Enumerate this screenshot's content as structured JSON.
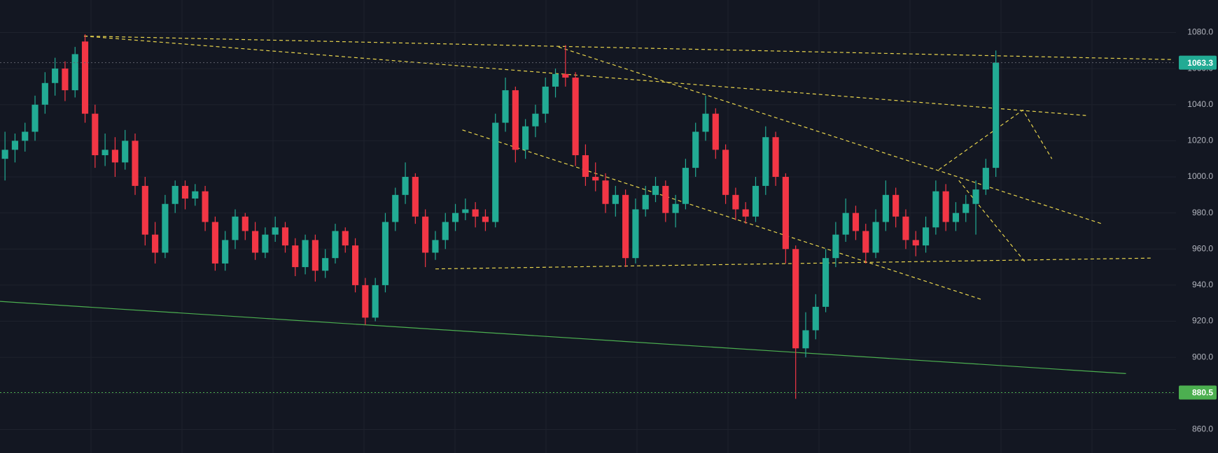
{
  "chart_data": {
    "type": "candlestick",
    "up_color": "#22ab94",
    "down_color": "#f23645",
    "ylim": [
      847,
      1098
    ],
    "xlim": [
      -0.5,
      117
    ],
    "yticks": [
      {
        "value": 860,
        "label": "860.0"
      },
      {
        "value": 880,
        "label": "880.0"
      },
      {
        "value": 900,
        "label": "900.0"
      },
      {
        "value": 920,
        "label": "920.0"
      },
      {
        "value": 940,
        "label": "940.0"
      },
      {
        "value": 960,
        "label": "960.0"
      },
      {
        "value": 980,
        "label": "980.0"
      },
      {
        "value": 1000,
        "label": "1000.0"
      },
      {
        "value": 1020,
        "label": "1020.0"
      },
      {
        "value": 1040,
        "label": "1040.0"
      },
      {
        "value": 1060,
        "label": "1060.0"
      },
      {
        "value": 1080,
        "label": "1080.0"
      }
    ],
    "grid": true,
    "candles": [
      [
        1010,
        1025,
        998,
        1015
      ],
      [
        1015,
        1024,
        1008,
        1020
      ],
      [
        1020,
        1030,
        1014,
        1025
      ],
      [
        1025,
        1045,
        1020,
        1040
      ],
      [
        1040,
        1058,
        1035,
        1052
      ],
      [
        1052,
        1066,
        1045,
        1060
      ],
      [
        1060,
        1064,
        1042,
        1048
      ],
      [
        1048,
        1072,
        1044,
        1068
      ],
      [
        1075,
        1079,
        1030,
        1035
      ],
      [
        1035,
        1040,
        1005,
        1012
      ],
      [
        1012,
        1024,
        1006,
        1015
      ],
      [
        1015,
        1022,
        1000,
        1008
      ],
      [
        1008,
        1026,
        1004,
        1020
      ],
      [
        1020,
        1024,
        990,
        995
      ],
      [
        995,
        1000,
        962,
        968
      ],
      [
        968,
        975,
        952,
        958
      ],
      [
        958,
        990,
        955,
        985
      ],
      [
        985,
        998,
        980,
        995
      ],
      [
        995,
        998,
        982,
        988
      ],
      [
        988,
        996,
        984,
        992
      ],
      [
        992,
        995,
        970,
        975
      ],
      [
        975,
        978,
        948,
        952
      ],
      [
        952,
        970,
        948,
        965
      ],
      [
        965,
        982,
        960,
        978
      ],
      [
        978,
        980,
        965,
        970
      ],
      [
        970,
        975,
        954,
        958
      ],
      [
        958,
        972,
        955,
        968
      ],
      [
        968,
        978,
        964,
        972
      ],
      [
        972,
        975,
        958,
        962
      ],
      [
        962,
        966,
        945,
        950
      ],
      [
        950,
        968,
        946,
        965
      ],
      [
        965,
        968,
        942,
        948
      ],
      [
        948,
        960,
        944,
        955
      ],
      [
        955,
        974,
        952,
        970
      ],
      [
        970,
        972,
        958,
        962
      ],
      [
        962,
        966,
        936,
        940
      ],
      [
        940,
        944,
        918,
        922
      ],
      [
        922,
        944,
        920,
        940
      ],
      [
        940,
        980,
        936,
        975
      ],
      [
        975,
        994,
        970,
        990
      ],
      [
        990,
        1008,
        985,
        1000
      ],
      [
        1000,
        1002,
        974,
        978
      ],
      [
        978,
        982,
        950,
        958
      ],
      [
        958,
        970,
        954,
        965
      ],
      [
        965,
        980,
        960,
        975
      ],
      [
        975,
        985,
        970,
        980
      ],
      [
        980,
        988,
        976,
        982
      ],
      [
        982,
        986,
        972,
        978
      ],
      [
        978,
        982,
        970,
        975
      ],
      [
        975,
        1035,
        972,
        1030
      ],
      [
        1030,
        1055,
        1025,
        1048
      ],
      [
        1048,
        1050,
        1008,
        1015
      ],
      [
        1015,
        1032,
        1010,
        1028
      ],
      [
        1028,
        1040,
        1022,
        1035
      ],
      [
        1035,
        1055,
        1030,
        1050
      ],
      [
        1050,
        1060,
        1044,
        1057
      ],
      [
        1057,
        1073,
        1050,
        1055
      ],
      [
        1055,
        1058,
        1006,
        1012
      ],
      [
        1012,
        1018,
        995,
        1000
      ],
      [
        1000,
        1008,
        992,
        998
      ],
      [
        998,
        1002,
        980,
        985
      ],
      [
        985,
        995,
        978,
        990
      ],
      [
        990,
        993,
        950,
        955
      ],
      [
        955,
        988,
        952,
        982
      ],
      [
        982,
        995,
        978,
        990
      ],
      [
        990,
        1000,
        986,
        995
      ],
      [
        995,
        998,
        975,
        980
      ],
      [
        980,
        990,
        972,
        985
      ],
      [
        985,
        1010,
        982,
        1005
      ],
      [
        1005,
        1030,
        1000,
        1025
      ],
      [
        1025,
        1045,
        1020,
        1035
      ],
      [
        1035,
        1038,
        1010,
        1015
      ],
      [
        1015,
        1018,
        985,
        990
      ],
      [
        990,
        994,
        976,
        982
      ],
      [
        982,
        986,
        974,
        978
      ],
      [
        978,
        1000,
        975,
        995
      ],
      [
        995,
        1028,
        990,
        1022
      ],
      [
        1022,
        1025,
        995,
        1000
      ],
      [
        1000,
        1002,
        952,
        960
      ],
      [
        960,
        962,
        877,
        905
      ],
      [
        905,
        925,
        900,
        915
      ],
      [
        915,
        935,
        910,
        928
      ],
      [
        928,
        960,
        925,
        955
      ],
      [
        955,
        975,
        950,
        968
      ],
      [
        968,
        988,
        964,
        980
      ],
      [
        980,
        984,
        965,
        970
      ],
      [
        970,
        974,
        952,
        958
      ],
      [
        958,
        982,
        955,
        975
      ],
      [
        975,
        998,
        970,
        990
      ],
      [
        990,
        994,
        972,
        978
      ],
      [
        978,
        982,
        960,
        965
      ],
      [
        965,
        970,
        956,
        962
      ],
      [
        962,
        978,
        958,
        972
      ],
      [
        972,
        998,
        968,
        992
      ],
      [
        992,
        996,
        970,
        975
      ],
      [
        975,
        986,
        970,
        980
      ],
      [
        980,
        990,
        975,
        985
      ],
      [
        985,
        998,
        968,
        993
      ],
      [
        993,
        1010,
        990,
        1005
      ],
      [
        1005,
        1070,
        1000,
        1063.3
      ]
    ],
    "price_labels": [
      {
        "value": 1063.3,
        "label": "1063.3",
        "color": "#22ab94"
      },
      {
        "value": 880.5,
        "label": "880.5",
        "color": "#4caf50"
      }
    ],
    "trendlines": [
      {
        "color": "#e8d44d",
        "dashed": true,
        "points": [
          [
            7.9,
            1078
          ],
          [
            116.6,
            1065
          ]
        ]
      },
      {
        "color": "#e8d44d",
        "dashed": true,
        "points": [
          [
            7.9,
            1078
          ],
          [
            108,
            1034
          ]
        ]
      },
      {
        "color": "#e8d44d",
        "dashed": true,
        "points": [
          [
            55.3,
            1072
          ],
          [
            109.6,
            974
          ]
        ]
      },
      {
        "color": "#e8d44d",
        "dashed": true,
        "points": [
          [
            45.7,
            1026
          ],
          [
            97.6,
            932
          ]
        ]
      },
      {
        "color": "#e8d44d",
        "dashed": true,
        "points": [
          [
            43,
            949
          ],
          [
            114.6,
            955
          ]
        ]
      },
      {
        "color": "#e8d44d",
        "dashed": true,
        "points": [
          [
            93.3,
            1004
          ],
          [
            101.7,
            1037
          ],
          [
            104.6,
            1010
          ]
        ]
      },
      {
        "color": "#e8d44d",
        "dashed": true,
        "points": [
          [
            95.3,
            998
          ],
          [
            101.9,
            953
          ]
        ]
      },
      {
        "color": "#4caf50",
        "dashed": false,
        "points": [
          [
            -0.5,
            931
          ],
          [
            112,
            891
          ]
        ]
      }
    ]
  }
}
